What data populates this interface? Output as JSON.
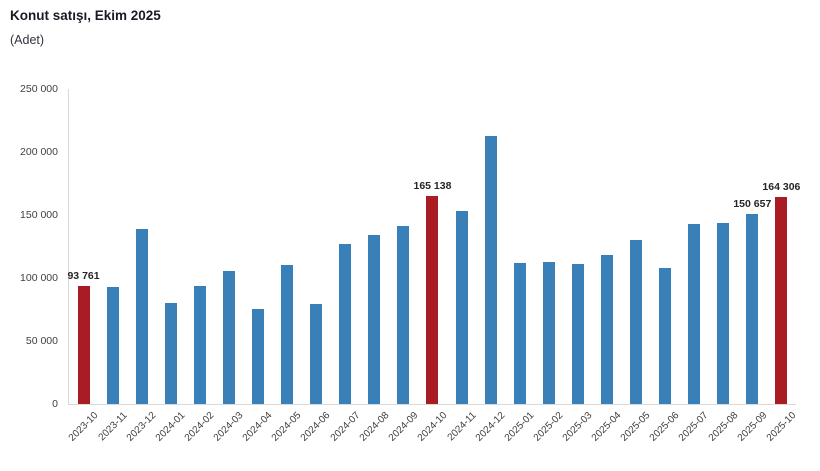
{
  "header": {
    "title": "Konut satışı, Ekim 2025",
    "subtitle": "(Adet)"
  },
  "chart_data": {
    "type": "bar",
    "title": "Konut satışı, Ekim 2025",
    "units_label": "(Adet)",
    "categories": [
      "2023-10",
      "2023-11",
      "2023-12",
      "2024-01",
      "2024-02",
      "2024-03",
      "2024-04",
      "2024-05",
      "2024-06",
      "2024-07",
      "2024-08",
      "2024-09",
      "2024-10",
      "2024-11",
      "2024-12",
      "2025-01",
      "2025-02",
      "2025-03",
      "2025-04",
      "2025-05",
      "2025-06",
      "2025-07",
      "2025-08",
      "2025-09",
      "2025-10"
    ],
    "values": [
      93761,
      93178,
      138577,
      80308,
      93902,
      105476,
      75569,
      110588,
      79313,
      127088,
      134155,
      140919,
      165138,
      153014,
      212637,
      112173,
      112818,
      110795,
      118359,
      130025,
      107723,
      142858,
      143319,
      150657,
      164306
    ],
    "highlighted_categories": [
      "2023-10",
      "2024-10",
      "2025-10"
    ],
    "data_labels": {
      "2023-10": "93 761",
      "2024-10": "165 138",
      "2025-09": "150 657",
      "2025-10": "164 306"
    },
    "ylim": [
      0,
      250000
    ],
    "y_ticks": [
      {
        "value": 0,
        "label": "0"
      },
      {
        "value": 50000,
        "label": "50 000"
      },
      {
        "value": 100000,
        "label": "100 000"
      },
      {
        "value": 150000,
        "label": "150 000"
      },
      {
        "value": 200000,
        "label": "200 000"
      },
      {
        "value": 250000,
        "label": "250 000"
      }
    ],
    "grid": false,
    "legend": "none",
    "colors": {
      "bar": "#3a80b8",
      "highlight": "#aa1c24",
      "axis_line": "#d9d9d9",
      "tick_text": "#404040",
      "value_label_text": "#262626"
    }
  }
}
